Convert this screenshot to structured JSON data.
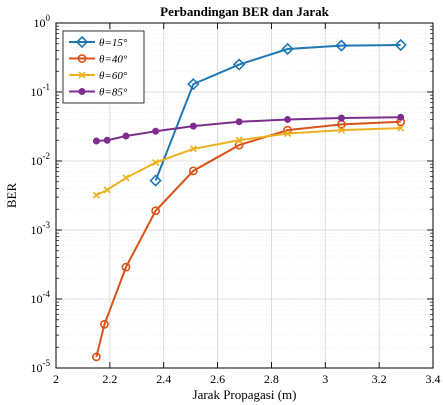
{
  "chart_data": {
    "type": "line",
    "title": "Perbandingan BER dan Jarak",
    "xlabel": "Jarak Propagasi (m)",
    "ylabel": "BER",
    "xlim": [
      2,
      3.4
    ],
    "ylim": [
      1e-05,
      1
    ],
    "yscale": "log",
    "grid": true,
    "legend_position": "top-left",
    "x_ticks": [
      "2",
      "2.2",
      "2.4",
      "2.6",
      "2.8",
      "3",
      "3.2",
      "3.4"
    ],
    "y_ticks": [
      {
        "base": "10",
        "exp": "-5"
      },
      {
        "base": "10",
        "exp": "-4"
      },
      {
        "base": "10",
        "exp": "-3"
      },
      {
        "base": "10",
        "exp": "-2"
      },
      {
        "base": "10",
        "exp": "-1"
      },
      {
        "base": "10",
        "exp": "0"
      }
    ],
    "series": [
      {
        "name": "θ=15°",
        "color": "#1f77b4",
        "marker": "diamond",
        "x": [
          2.37,
          2.51,
          2.68,
          2.86,
          3.06,
          3.28
        ],
        "y": [
          0.0052,
          0.13,
          0.25,
          0.42,
          0.47,
          0.48
        ]
      },
      {
        "name": "θ=40°",
        "color": "#d95319",
        "marker": "circle",
        "x": [
          2.15,
          2.18,
          2.26,
          2.37,
          2.51,
          2.68,
          2.86,
          3.06,
          3.28
        ],
        "y": [
          1.45e-05,
          4.3e-05,
          0.00029,
          0.0019,
          0.0072,
          0.017,
          0.028,
          0.034,
          0.037
        ]
      },
      {
        "name": "θ=60°",
        "color": "#edb120",
        "marker": "x",
        "x": [
          2.15,
          2.19,
          2.26,
          2.37,
          2.51,
          2.68,
          2.86,
          3.06,
          3.28
        ],
        "y": [
          0.0032,
          0.0038,
          0.0057,
          0.0095,
          0.015,
          0.02,
          0.025,
          0.028,
          0.03
        ]
      },
      {
        "name": "θ=85°",
        "color": "#7e2f8e",
        "marker": "circle-filled",
        "x": [
          2.15,
          2.19,
          2.26,
          2.37,
          2.51,
          2.68,
          2.86,
          3.06,
          3.28
        ],
        "y": [
          0.0195,
          0.02,
          0.023,
          0.027,
          0.032,
          0.037,
          0.04,
          0.042,
          0.043
        ]
      }
    ]
  }
}
